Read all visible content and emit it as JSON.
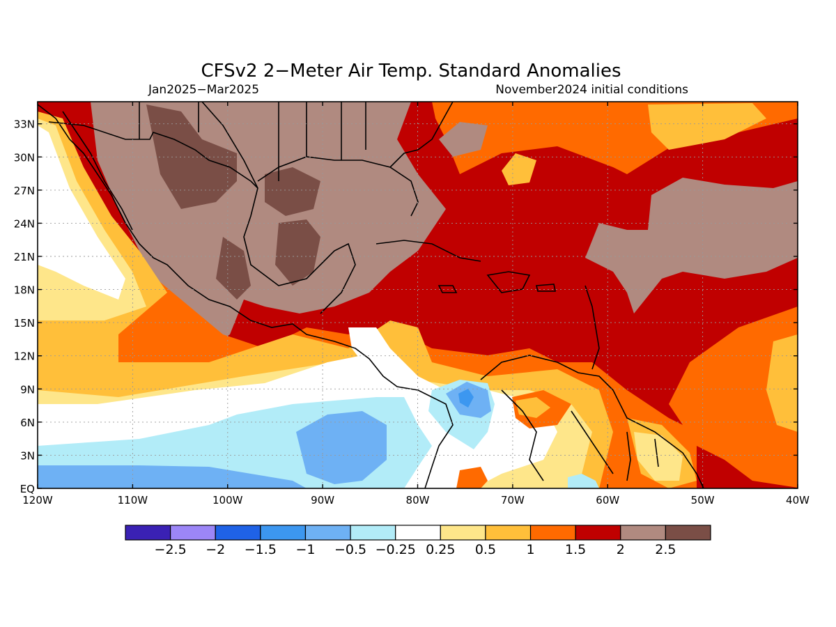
{
  "header": {
    "title": "CFSv2 2−Meter Air Temp. Standard Anomalies",
    "period": "Jan2025−Mar2025",
    "initial_conditions": "November2024 initial conditions"
  },
  "map": {
    "lon_range": [
      -120,
      -40
    ],
    "lat_range": [
      0,
      35
    ],
    "lon_ticks": [
      "120W",
      "110W",
      "100W",
      "90W",
      "80W",
      "70W",
      "60W",
      "50W",
      "40W"
    ],
    "lat_ticks": [
      "EQ",
      "3N",
      "6N",
      "9N",
      "12N",
      "15N",
      "18N",
      "21N",
      "24N",
      "27N",
      "30N",
      "33N"
    ],
    "grid": "dotted"
  },
  "colorbar": {
    "labels": [
      "−2.5",
      "−2",
      "−1.5",
      "−1",
      "−0.5",
      "−0.25",
      "0.25",
      "0.5",
      "1",
      "1.5",
      "2",
      "2.5"
    ],
    "colors": [
      "#3a21b4",
      "#9c86f7",
      "#1f62e6",
      "#3c97f0",
      "#6eb1f4",
      "#b2ecf8",
      "#ffffff",
      "#fee68a",
      "#ffbf3a",
      "#ff6a00",
      "#c00000",
      "#b08a80",
      "#7a4e46"
    ]
  }
}
